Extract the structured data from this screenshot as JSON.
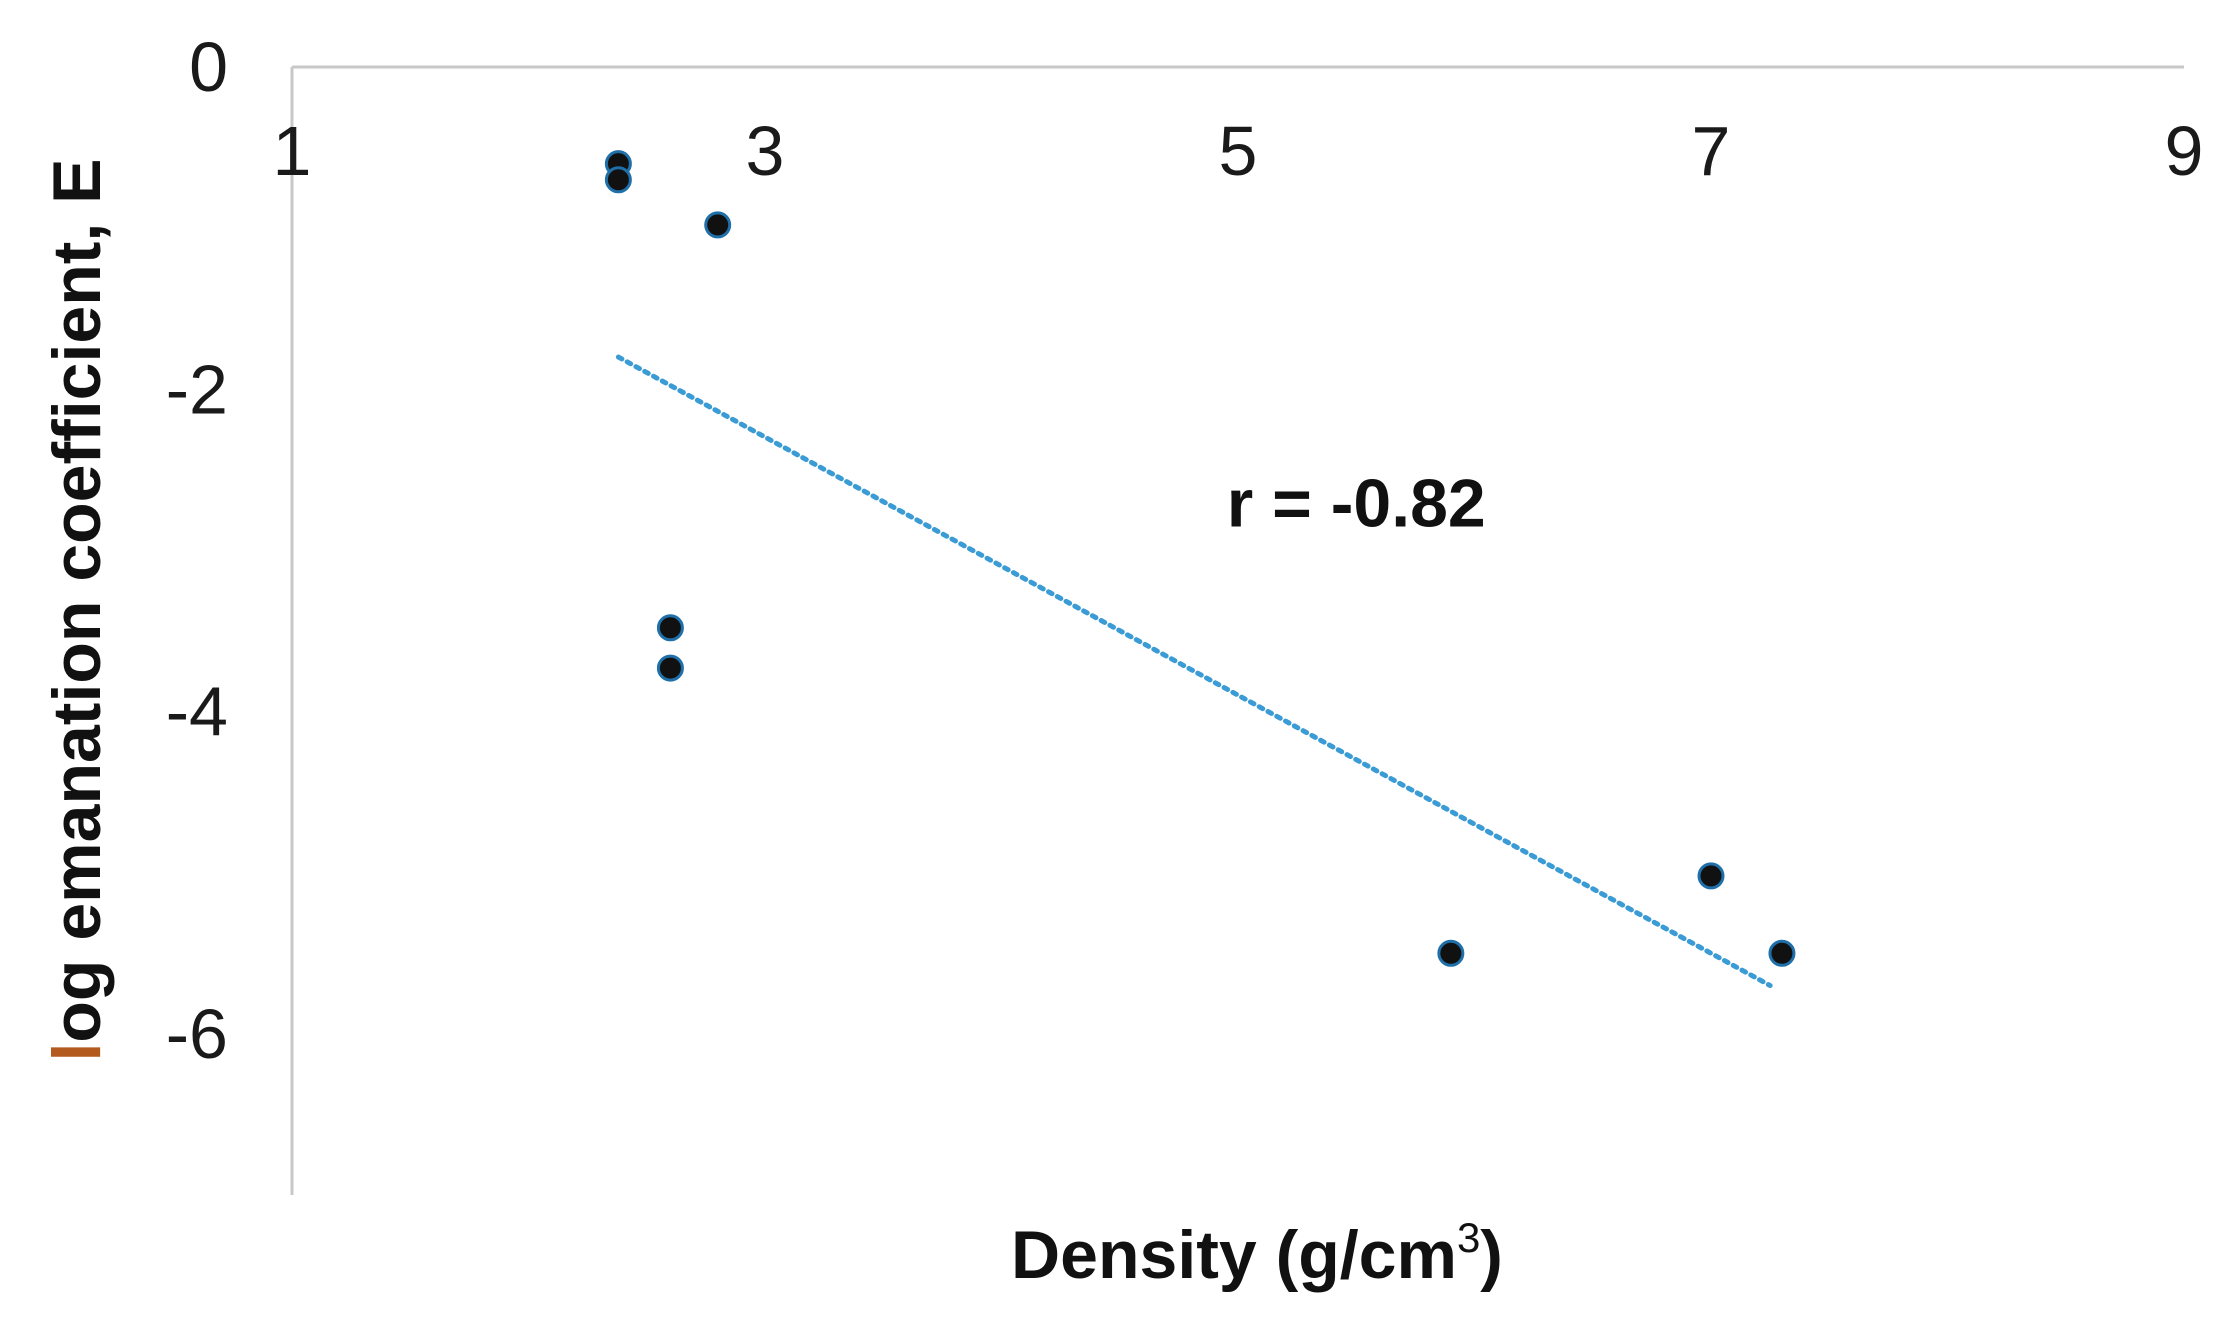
{
  "chart_data": {
    "type": "scatter",
    "title": "",
    "xlabel": "Density (g/cm",
    "xlabel_sup": "3",
    "xlabel_end": ")",
    "ylabel": "log emanation coefficient, E",
    "xlim": [
      1,
      9
    ],
    "ylim": [
      -7,
      0
    ],
    "x_axis_position": "top",
    "x_ticks": [
      1,
      3,
      5,
      7,
      9
    ],
    "y_ticks": [
      0,
      -2,
      -4,
      -6
    ],
    "x_tick_labels": [
      "1",
      "3",
      "5",
      "7",
      "9"
    ],
    "y_tick_labels": [
      "0",
      "-2",
      "-4",
      "-6"
    ],
    "grid": false,
    "legend": "none",
    "series": [
      {
        "points": [
          {
            "x": 2.38,
            "y": -0.6
          },
          {
            "x": 2.38,
            "y": -0.7
          },
          {
            "x": 2.8,
            "y": -0.98
          },
          {
            "x": 2.6,
            "y": -3.48
          },
          {
            "x": 2.6,
            "y": -3.73
          },
          {
            "x": 5.9,
            "y": -5.5
          },
          {
            "x": 7.0,
            "y": -5.02
          },
          {
            "x": 7.3,
            "y": -5.5
          }
        ]
      }
    ],
    "trendline": {
      "style": "dotted",
      "x_start": 2.38,
      "y_start": -1.8,
      "x_end": 7.25,
      "y_end": -5.7
    },
    "annotation": {
      "text": "r = -0.82",
      "x": 5.5,
      "y": -2.85
    },
    "colors": {
      "marker_fill": "#111111",
      "marker_edge": "#1f6fa8",
      "trendline": "#3a9bd5",
      "axis_line": "#c8c8c8",
      "ylabel": "#111111",
      "ylabel_first_letter": "#b35a1f",
      "xlabel": "#111111"
    }
  }
}
